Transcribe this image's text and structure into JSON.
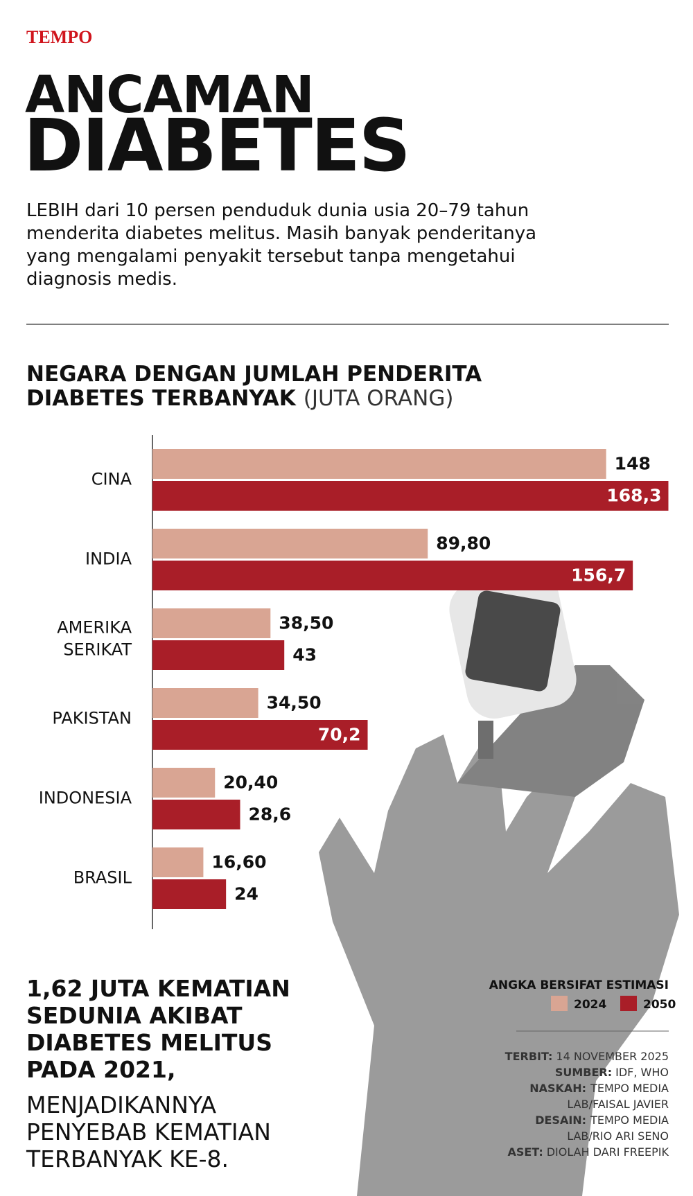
{
  "brand": "TEMPO",
  "headline": [
    "ANCAMAN",
    "DIABETES"
  ],
  "intro": [
    "LEBIH dari 10 persen penduduk dunia usia 20–79 tahun",
    "menderita diabetes melitus. Masih banyak penderitanya",
    "yang mengalami penyakit tersebut tanpa mengetahui",
    "diagnosis medis."
  ],
  "chart_data": {
    "type": "hbar",
    "title": [
      "NEGARA DENGAN JUMLAH PENDERITA",
      "DIABETES TERBANYAK"
    ],
    "unit": "(JUTA ORANG)",
    "categories": [
      "CINA",
      "INDIA",
      "AMERIKA SERIKAT",
      "PAKISTAN",
      "INDONESIA",
      "BRASIL"
    ],
    "series": [
      {
        "name": "2024",
        "color": "#d9a593",
        "values": [
          148,
          89.8,
          38.5,
          34.5,
          20.4,
          16.6
        ],
        "value_labels": [
          "148",
          "89,80",
          "38,50",
          "34,50",
          "20,40",
          "16,60"
        ]
      },
      {
        "name": "2050",
        "color": "#a91e28",
        "values": [
          168.3,
          156.7,
          43,
          70.2,
          28.6,
          24
        ],
        "value_labels": [
          "168,3",
          "156,7",
          "43",
          "70,2",
          "28,6",
          "24"
        ]
      }
    ],
    "xlim": [
      0,
      170
    ],
    "legend_title": "ANGKA BERSIFAT ESTIMASI",
    "legend": "bottom-right"
  },
  "stat": {
    "bold": [
      "1,62 JUTA KEMATIAN",
      "SEDUNIA AKIBAT",
      "DIABETES MELITUS",
      "PADA 2021,"
    ],
    "normal": [
      "MENJADIKANNYA",
      "PENYEBAB KEMATIAN",
      "TERBANYAK KE-8."
    ]
  },
  "credits": [
    {
      "label": "TERBIT:",
      "value": [
        "14 NOVEMBER 2025"
      ]
    },
    {
      "label": "SUMBER:",
      "value": [
        "IDF, WHO"
      ]
    },
    {
      "label": "NASKAH:",
      "value": [
        "TEMPO MEDIA",
        "LAB/FAISAL JAVIER"
      ]
    },
    {
      "label": "DESAIN:",
      "value": [
        "TEMPO MEDIA",
        "LAB/RIO ARI SENO"
      ]
    },
    {
      "label": "ASET:",
      "value": [
        "DIOLAH DARI FREEPIK"
      ]
    }
  ]
}
